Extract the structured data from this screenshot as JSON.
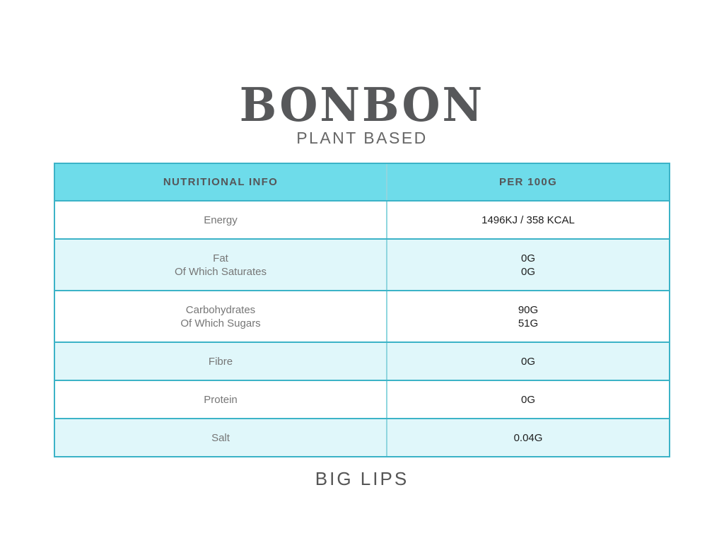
{
  "brand": {
    "name": "BONBON",
    "tagline": "PLANT BASED"
  },
  "table": {
    "headers": [
      "NUTRITIONAL INFO",
      "PER 100G"
    ],
    "rows": [
      {
        "label": "Energy",
        "value": "1496KJ / 358 KCAL"
      },
      {
        "label": "Fat\nOf Which Saturates",
        "value": "0G\n0G"
      },
      {
        "label": "Carbohydrates\nOf Which Sugars",
        "value": "90G\n51G"
      },
      {
        "label": "Fibre",
        "value": "0G"
      },
      {
        "label": "Protein",
        "value": "0G"
      },
      {
        "label": "Salt",
        "value": "0.04G"
      }
    ]
  },
  "footer": {
    "text": "BIG LIPS"
  },
  "colors": {
    "header_bg": "#6edcea",
    "alt_row_bg": "#e0f7fa",
    "border": "#3cb3c7",
    "column_divider": "#8fd6df",
    "logo_text": "#57585a",
    "label_text": "#767676",
    "value_text": "#1d1d1d"
  }
}
